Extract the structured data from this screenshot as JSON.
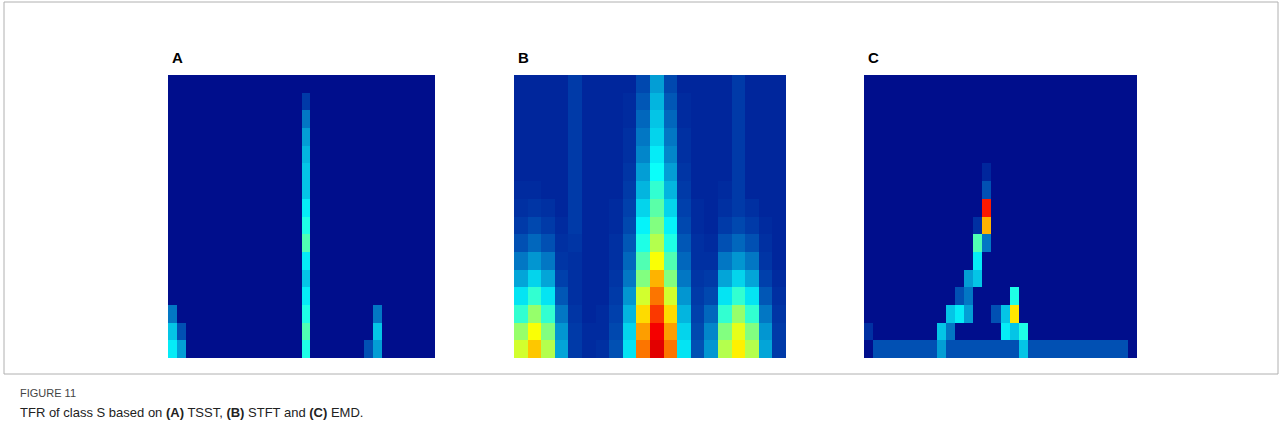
{
  "figure_label": "FIGURE 11",
  "caption": "TFR of class S based on (A) TSST, (B) STFT and (C) EMD.",
  "chart_data": [
    {
      "type": "heatmap",
      "title": "A",
      "color": "Jet",
      "zlim": [
        0,
        100
      ],
      "tick_labels": false,
      "z": [
        [
          3,
          3,
          3,
          3,
          3,
          3,
          3,
          3,
          3,
          3,
          3,
          3,
          3,
          3,
          3,
          3,
          3,
          3,
          3,
          3,
          3,
          3,
          3,
          3,
          3,
          3,
          3,
          3,
          3,
          3
        ],
        [
          3,
          3,
          3,
          3,
          3,
          3,
          3,
          3,
          3,
          3,
          3,
          3,
          3,
          3,
          3,
          12,
          3,
          3,
          3,
          3,
          3,
          3,
          3,
          3,
          3,
          3,
          3,
          3,
          3,
          3
        ],
        [
          3,
          3,
          3,
          3,
          3,
          3,
          3,
          3,
          3,
          3,
          3,
          3,
          3,
          3,
          3,
          20,
          3,
          3,
          3,
          3,
          3,
          3,
          3,
          3,
          3,
          3,
          3,
          3,
          3,
          3
        ],
        [
          3,
          3,
          3,
          3,
          3,
          3,
          3,
          3,
          3,
          3,
          3,
          3,
          3,
          3,
          3,
          25,
          3,
          3,
          3,
          3,
          3,
          3,
          3,
          3,
          3,
          3,
          3,
          3,
          3,
          3
        ],
        [
          3,
          3,
          3,
          3,
          3,
          3,
          3,
          3,
          3,
          3,
          3,
          3,
          3,
          3,
          3,
          28,
          3,
          3,
          3,
          3,
          3,
          3,
          3,
          3,
          3,
          3,
          3,
          3,
          3,
          3
        ],
        [
          3,
          3,
          3,
          3,
          3,
          3,
          3,
          3,
          3,
          3,
          3,
          3,
          3,
          3,
          3,
          30,
          3,
          3,
          3,
          3,
          3,
          3,
          3,
          3,
          3,
          3,
          3,
          3,
          3,
          3
        ],
        [
          3,
          3,
          3,
          3,
          3,
          3,
          3,
          3,
          3,
          3,
          3,
          3,
          3,
          3,
          3,
          30,
          3,
          3,
          3,
          3,
          3,
          3,
          3,
          3,
          3,
          3,
          3,
          3,
          3,
          3
        ],
        [
          3,
          3,
          3,
          3,
          3,
          3,
          3,
          3,
          3,
          3,
          3,
          3,
          3,
          3,
          3,
          35,
          3,
          3,
          3,
          3,
          3,
          3,
          3,
          3,
          3,
          3,
          3,
          3,
          3,
          3
        ],
        [
          3,
          3,
          3,
          3,
          3,
          3,
          3,
          3,
          3,
          3,
          3,
          3,
          3,
          3,
          3,
          40,
          3,
          3,
          3,
          3,
          3,
          3,
          3,
          3,
          3,
          3,
          3,
          3,
          3,
          3
        ],
        [
          3,
          3,
          3,
          3,
          3,
          3,
          3,
          3,
          3,
          3,
          3,
          3,
          3,
          3,
          3,
          45,
          3,
          3,
          3,
          3,
          3,
          3,
          3,
          3,
          3,
          3,
          3,
          3,
          3,
          3
        ],
        [
          3,
          3,
          3,
          3,
          3,
          3,
          3,
          3,
          3,
          3,
          3,
          3,
          3,
          3,
          3,
          35,
          3,
          3,
          3,
          3,
          3,
          3,
          3,
          3,
          3,
          3,
          3,
          3,
          3,
          3
        ],
        [
          3,
          3,
          3,
          3,
          3,
          3,
          3,
          3,
          3,
          3,
          3,
          3,
          3,
          3,
          3,
          30,
          3,
          3,
          3,
          3,
          3,
          3,
          3,
          3,
          3,
          3,
          3,
          3,
          3,
          3
        ],
        [
          3,
          3,
          3,
          3,
          3,
          3,
          3,
          3,
          3,
          3,
          3,
          3,
          3,
          3,
          3,
          35,
          3,
          3,
          3,
          3,
          3,
          3,
          3,
          3,
          3,
          3,
          3,
          3,
          3,
          3
        ],
        [
          20,
          3,
          3,
          3,
          3,
          3,
          3,
          3,
          3,
          3,
          3,
          3,
          3,
          3,
          3,
          40,
          3,
          3,
          3,
          3,
          3,
          3,
          3,
          20,
          3,
          3,
          3,
          3,
          3,
          3
        ],
        [
          30,
          15,
          3,
          3,
          3,
          3,
          3,
          3,
          3,
          3,
          3,
          3,
          3,
          3,
          3,
          45,
          3,
          3,
          3,
          3,
          3,
          3,
          3,
          30,
          3,
          3,
          3,
          3,
          3,
          3
        ],
        [
          35,
          25,
          3,
          3,
          3,
          3,
          3,
          3,
          3,
          3,
          3,
          3,
          3,
          3,
          3,
          40,
          3,
          3,
          3,
          3,
          3,
          3,
          15,
          25,
          3,
          3,
          3,
          3,
          3,
          3
        ]
      ]
    },
    {
      "type": "heatmap",
      "title": "B",
      "color": "Jet",
      "zlim": [
        0,
        100
      ],
      "tick_labels": false,
      "z": [
        [
          8,
          8,
          8,
          8,
          12,
          8,
          8,
          8,
          8,
          14,
          25,
          14,
          8,
          8,
          8,
          8,
          12,
          8,
          8,
          8
        ],
        [
          8,
          8,
          8,
          8,
          12,
          8,
          8,
          8,
          9,
          16,
          28,
          16,
          9,
          8,
          8,
          8,
          12,
          8,
          8,
          8
        ],
        [
          8,
          8,
          8,
          8,
          12,
          8,
          8,
          8,
          9,
          18,
          30,
          18,
          9,
          8,
          8,
          8,
          12,
          8,
          8,
          8
        ],
        [
          8,
          8,
          8,
          8,
          12,
          8,
          8,
          8,
          10,
          20,
          32,
          20,
          10,
          8,
          8,
          8,
          12,
          8,
          8,
          8
        ],
        [
          8,
          8,
          8,
          8,
          12,
          8,
          8,
          8,
          10,
          22,
          35,
          22,
          10,
          8,
          8,
          8,
          12,
          8,
          8,
          8
        ],
        [
          8,
          8,
          8,
          8,
          12,
          8,
          8,
          8,
          11,
          25,
          38,
          25,
          11,
          8,
          8,
          8,
          12,
          8,
          8,
          8
        ],
        [
          9,
          9,
          8,
          8,
          12,
          8,
          8,
          8,
          12,
          28,
          42,
          28,
          12,
          8,
          8,
          9,
          12,
          8,
          8,
          8
        ],
        [
          10,
          11,
          10,
          8,
          12,
          8,
          8,
          9,
          13,
          32,
          46,
          32,
          13,
          9,
          8,
          10,
          12,
          10,
          8,
          8
        ],
        [
          12,
          14,
          12,
          9,
          12,
          8,
          8,
          9,
          14,
          36,
          50,
          36,
          14,
          9,
          8,
          12,
          14,
          12,
          9,
          8
        ],
        [
          15,
          18,
          15,
          10,
          11,
          8,
          8,
          10,
          16,
          40,
          55,
          40,
          16,
          10,
          9,
          15,
          18,
          15,
          10,
          8
        ],
        [
          20,
          24,
          20,
          11,
          10,
          8,
          8,
          10,
          18,
          45,
          62,
          45,
          18,
          10,
          10,
          20,
          24,
          20,
          11,
          8
        ],
        [
          26,
          32,
          26,
          13,
          10,
          8,
          8,
          11,
          20,
          50,
          70,
          50,
          20,
          11,
          12,
          26,
          32,
          26,
          13,
          9
        ],
        [
          34,
          42,
          34,
          16,
          10,
          8,
          8,
          12,
          24,
          58,
          76,
          58,
          24,
          12,
          14,
          34,
          42,
          34,
          16,
          10
        ],
        [
          42,
          52,
          42,
          20,
          11,
          8,
          9,
          13,
          28,
          66,
          82,
          66,
          28,
          13,
          18,
          42,
          52,
          42,
          20,
          11
        ],
        [
          52,
          62,
          50,
          24,
          12,
          9,
          9,
          14,
          32,
          72,
          88,
          72,
          32,
          14,
          22,
          50,
          60,
          50,
          24,
          12
        ],
        [
          58,
          68,
          55,
          26,
          12,
          9,
          10,
          15,
          34,
          76,
          90,
          76,
          34,
          15,
          24,
          55,
          64,
          55,
          26,
          12
        ]
      ]
    },
    {
      "type": "heatmap",
      "title": "C",
      "color": "Jet",
      "zlim": [
        0,
        100
      ],
      "tick_labels": false,
      "z": [
        [
          3,
          3,
          3,
          3,
          3,
          3,
          3,
          3,
          3,
          3,
          3,
          3,
          3,
          3,
          3,
          3,
          3,
          3,
          3,
          3,
          3,
          3,
          3,
          3,
          3,
          3,
          3,
          3,
          3,
          3
        ],
        [
          3,
          3,
          3,
          3,
          3,
          3,
          3,
          3,
          3,
          3,
          3,
          3,
          3,
          3,
          3,
          3,
          3,
          3,
          3,
          3,
          3,
          3,
          3,
          3,
          3,
          3,
          3,
          3,
          3,
          3
        ],
        [
          3,
          3,
          3,
          3,
          3,
          3,
          3,
          3,
          3,
          3,
          3,
          3,
          3,
          3,
          3,
          3,
          3,
          3,
          3,
          3,
          3,
          3,
          3,
          3,
          3,
          3,
          3,
          3,
          3,
          3
        ],
        [
          3,
          3,
          3,
          3,
          3,
          3,
          3,
          3,
          3,
          3,
          3,
          3,
          3,
          3,
          3,
          3,
          3,
          3,
          3,
          3,
          3,
          3,
          3,
          3,
          3,
          3,
          3,
          3,
          3,
          3
        ],
        [
          3,
          3,
          3,
          3,
          3,
          3,
          3,
          3,
          3,
          3,
          3,
          3,
          3,
          3,
          3,
          3,
          3,
          3,
          3,
          3,
          3,
          3,
          3,
          3,
          3,
          3,
          3,
          3,
          3,
          3
        ],
        [
          3,
          3,
          3,
          3,
          3,
          3,
          3,
          3,
          3,
          3,
          3,
          3,
          3,
          8,
          3,
          3,
          3,
          3,
          3,
          3,
          3,
          3,
          3,
          3,
          3,
          3,
          3,
          3,
          3,
          3
        ],
        [
          3,
          3,
          3,
          3,
          3,
          3,
          3,
          3,
          3,
          3,
          3,
          3,
          3,
          15,
          3,
          3,
          3,
          3,
          3,
          3,
          3,
          3,
          3,
          3,
          3,
          3,
          3,
          3,
          3,
          3
        ],
        [
          3,
          3,
          3,
          3,
          3,
          3,
          3,
          3,
          3,
          3,
          3,
          3,
          3,
          85,
          3,
          3,
          3,
          3,
          3,
          3,
          3,
          3,
          3,
          3,
          3,
          3,
          3,
          3,
          3,
          3
        ],
        [
          3,
          3,
          3,
          3,
          3,
          3,
          3,
          3,
          3,
          3,
          3,
          3,
          10,
          70,
          3,
          3,
          3,
          3,
          3,
          3,
          3,
          3,
          3,
          3,
          3,
          3,
          3,
          3,
          3,
          3
        ],
        [
          3,
          3,
          3,
          3,
          3,
          3,
          3,
          3,
          3,
          3,
          3,
          3,
          45,
          20,
          3,
          3,
          3,
          3,
          3,
          3,
          3,
          3,
          3,
          3,
          3,
          3,
          3,
          3,
          3,
          3
        ],
        [
          3,
          3,
          3,
          3,
          3,
          3,
          3,
          3,
          3,
          3,
          3,
          3,
          35,
          3,
          3,
          3,
          3,
          3,
          3,
          3,
          3,
          3,
          3,
          3,
          3,
          3,
          3,
          3,
          3,
          3
        ],
        [
          3,
          3,
          3,
          3,
          3,
          3,
          3,
          3,
          3,
          3,
          3,
          25,
          30,
          3,
          3,
          3,
          3,
          3,
          3,
          3,
          3,
          3,
          3,
          3,
          3,
          3,
          3,
          3,
          3,
          3
        ],
        [
          3,
          3,
          3,
          3,
          3,
          3,
          3,
          3,
          3,
          3,
          15,
          20,
          3,
          3,
          3,
          3,
          40,
          3,
          3,
          3,
          3,
          3,
          3,
          3,
          3,
          3,
          3,
          3,
          3,
          3
        ],
        [
          3,
          3,
          3,
          3,
          3,
          3,
          3,
          3,
          3,
          30,
          35,
          25,
          3,
          3,
          15,
          30,
          65,
          3,
          3,
          3,
          3,
          3,
          3,
          3,
          3,
          3,
          3,
          3,
          3,
          3
        ],
        [
          10,
          3,
          3,
          3,
          3,
          3,
          3,
          3,
          30,
          20,
          3,
          3,
          3,
          3,
          3,
          35,
          30,
          40,
          3,
          3,
          3,
          3,
          3,
          3,
          3,
          3,
          3,
          3,
          3,
          3
        ],
        [
          3,
          15,
          15,
          15,
          15,
          15,
          15,
          15,
          25,
          15,
          15,
          15,
          15,
          15,
          15,
          15,
          15,
          30,
          15,
          15,
          15,
          15,
          15,
          15,
          15,
          15,
          15,
          15,
          15,
          3
        ]
      ]
    }
  ]
}
